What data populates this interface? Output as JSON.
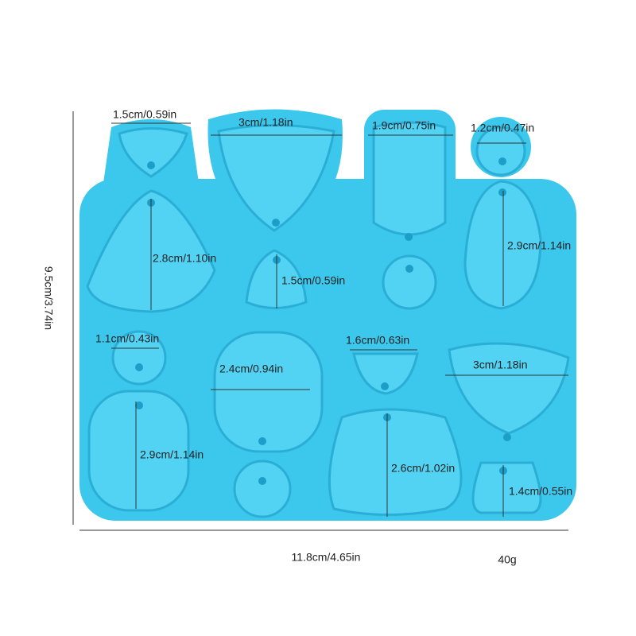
{
  "dimensions": {
    "height": "9.5cm/3.74in",
    "width": "11.8cm/4.65in"
  },
  "weight": "40g",
  "cavities": [
    {
      "label": "1.5cm/0.59in"
    },
    {
      "label": "3cm/1.18in"
    },
    {
      "label": "1.9cm/0.75in"
    },
    {
      "label": "1.2cm/0.47in"
    },
    {
      "label": "2.8cm/1.10in"
    },
    {
      "label": "1.5cm/0.59in"
    },
    {
      "label": "2.9cm/1.14in"
    },
    {
      "label": "1.1cm/0.43in"
    },
    {
      "label": "2.4cm/0.94in"
    },
    {
      "label": "1.6cm/0.63in"
    },
    {
      "label": "3cm/1.18in"
    },
    {
      "label": "2.9cm/1.14in"
    },
    {
      "label": "2.6cm/1.02in"
    },
    {
      "label": "1.4cm/0.55in"
    }
  ]
}
